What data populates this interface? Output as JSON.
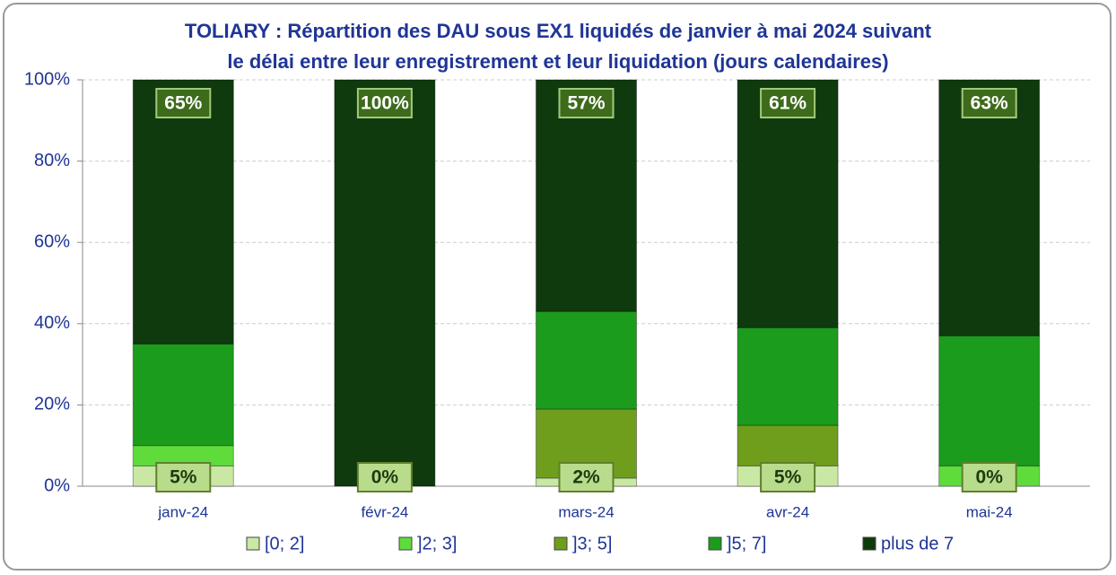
{
  "chart_data": {
    "type": "stacked_bar",
    "title": [
      "TOLIARY : Répartition des DAU sous EX1 liquidés de janvier à mai 2024 suivant",
      "le délai entre leur enregistrement et leur liquidation (jours calendaires)"
    ],
    "categories": [
      "janv-24",
      "févr-24",
      "mars-24",
      "avr-24",
      "mai-24"
    ],
    "series": [
      {
        "name": "[0; 2]",
        "color": "#c9e8a4",
        "values": [
          5,
          0,
          2,
          5,
          0
        ],
        "value_labels": [
          "5%",
          "0%",
          "2%",
          "5%",
          "0%"
        ]
      },
      {
        "name": "]2; 3]",
        "color": "#5fdc3c",
        "values": [
          5,
          0,
          0,
          0,
          5
        ]
      },
      {
        "name": "]3; 5]",
        "color": "#6f9e1c",
        "values": [
          0,
          0,
          17,
          10,
          0
        ]
      },
      {
        "name": "]5; 7]",
        "color": "#1c9c1c",
        "values": [
          25,
          0,
          24,
          24,
          32
        ]
      },
      {
        "name": "plus de 7",
        "color": "#0e3a0e",
        "values": [
          65,
          100,
          57,
          61,
          63
        ],
        "value_labels": [
          "65%",
          "100%",
          "57%",
          "61%",
          "63%"
        ]
      }
    ],
    "ylim": [
      0,
      100
    ],
    "yticks": [
      {
        "value": 0,
        "label": "0%"
      },
      {
        "value": 20,
        "label": "20%"
      },
      {
        "value": 40,
        "label": "40%"
      },
      {
        "value": 60,
        "label": "60%"
      },
      {
        "value": 80,
        "label": "80%"
      },
      {
        "value": 100,
        "label": "100%"
      }
    ],
    "grid": true,
    "legend": "bottom"
  }
}
